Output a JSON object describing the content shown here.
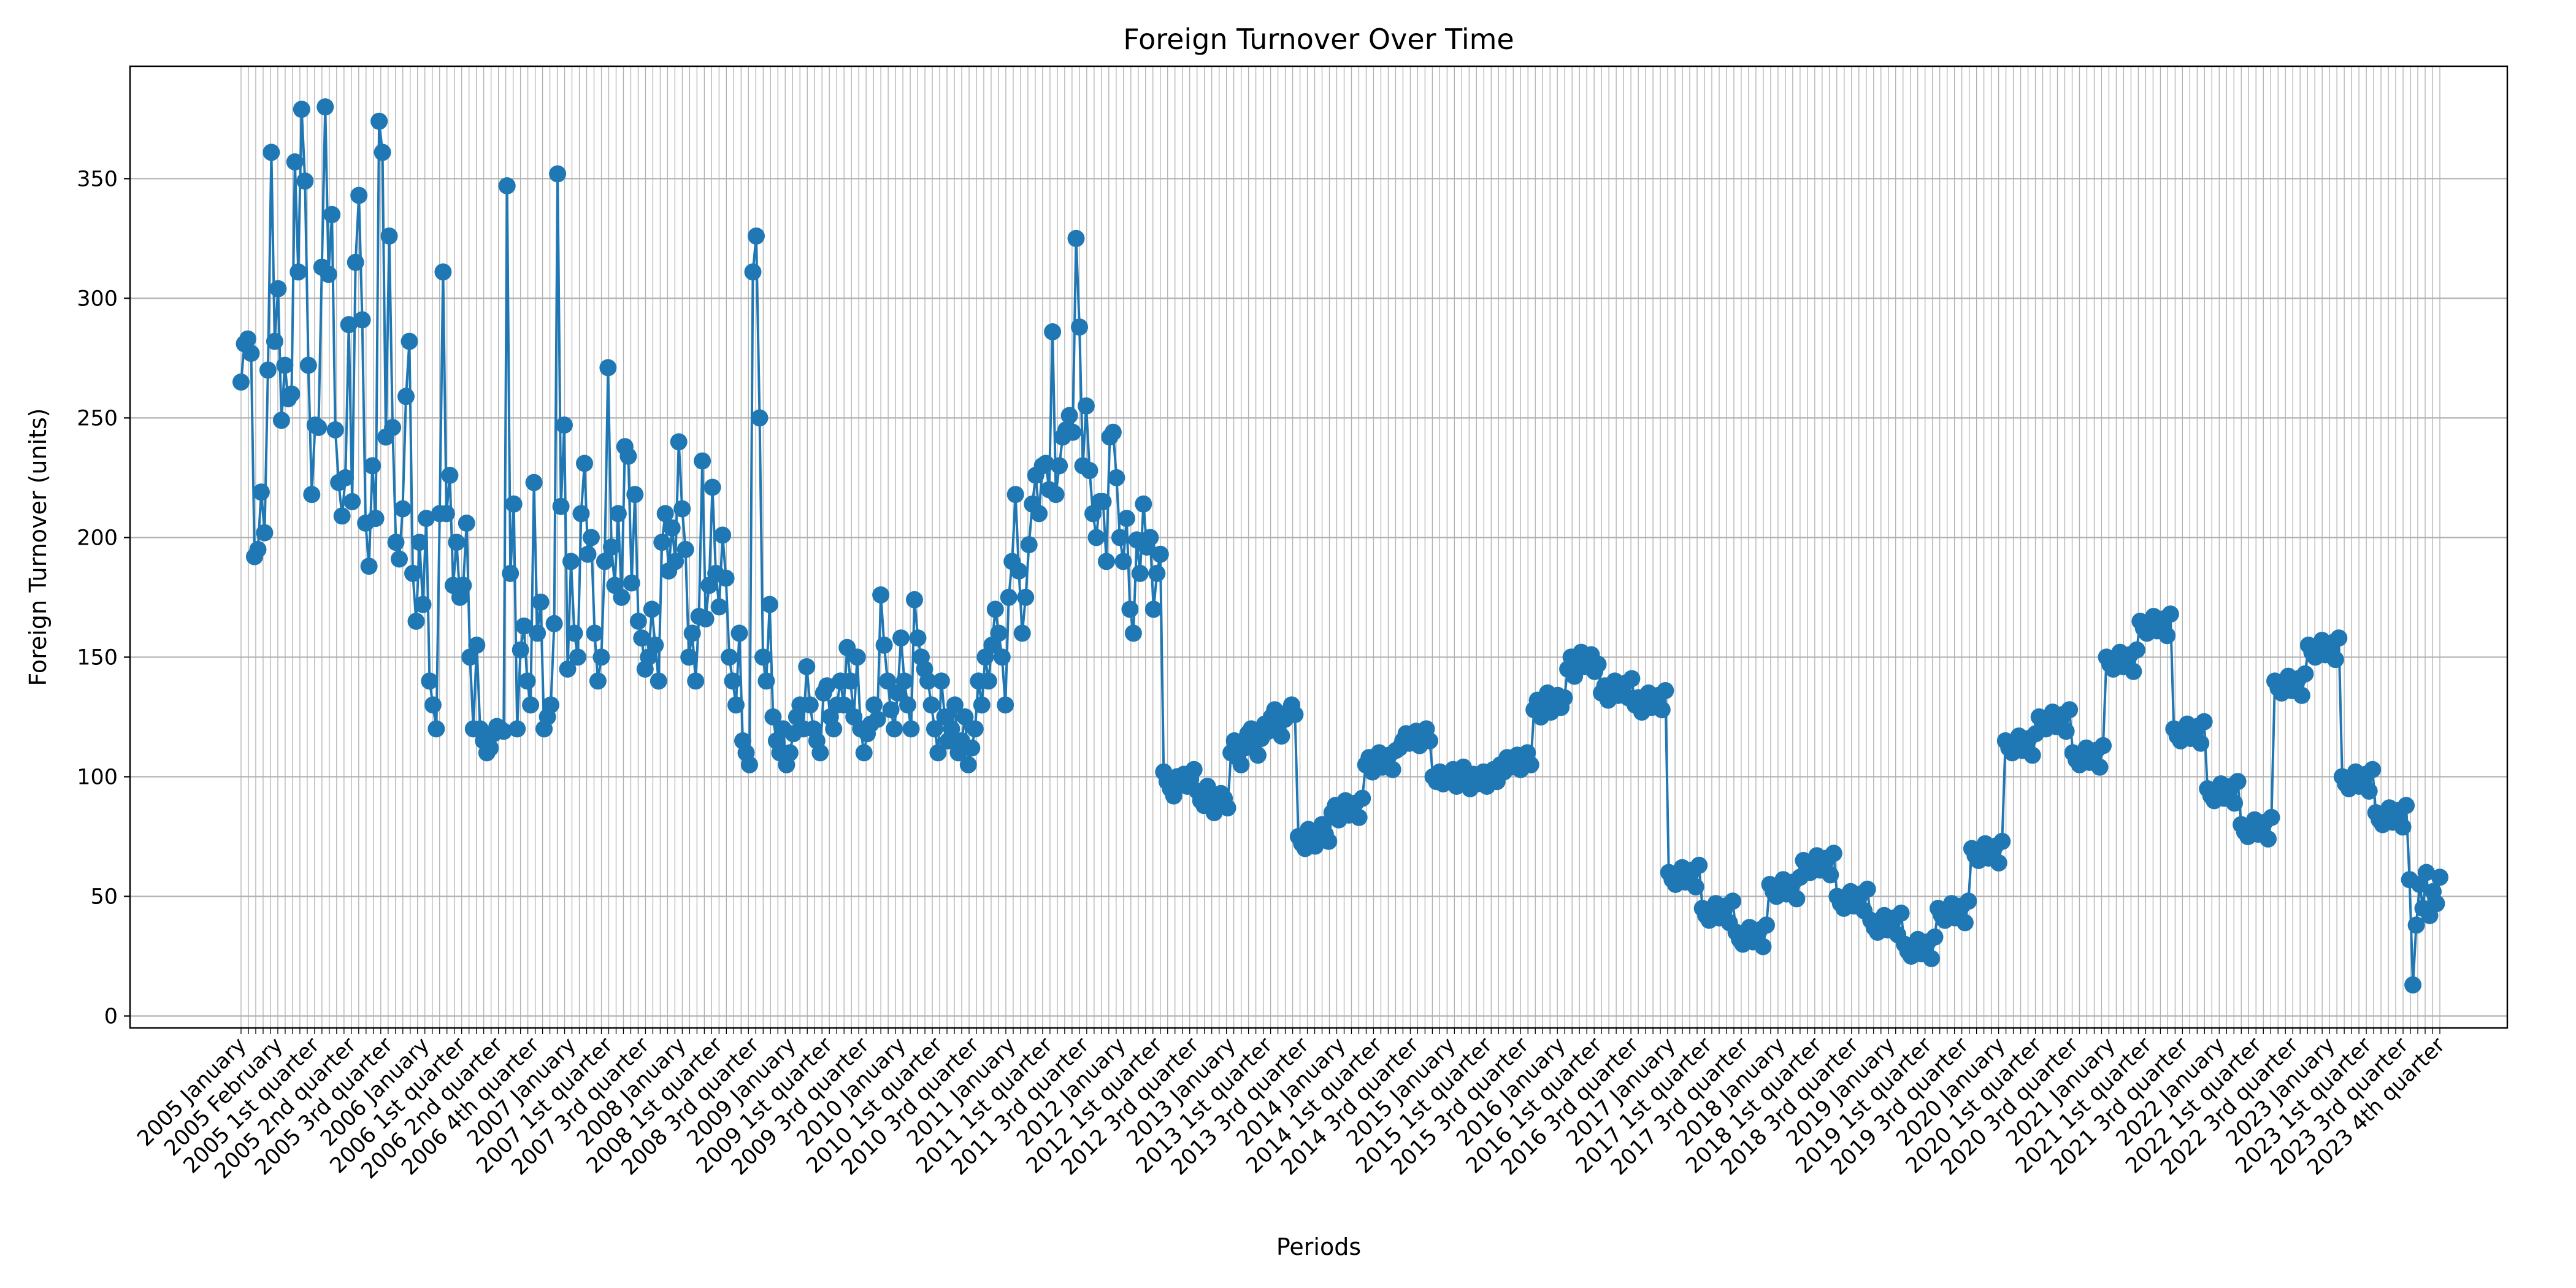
{
  "chart_data": {
    "type": "line",
    "title": "Foreign Turnover Over Time",
    "xlabel": "Periods",
    "ylabel": "Foreign Turnover (units)",
    "ylim": [
      -5,
      397
    ],
    "yticks": [
      0,
      50,
      100,
      150,
      200,
      250,
      300,
      350
    ],
    "grid": true,
    "marker": "circle",
    "colors": {
      "series": "#1f77b4",
      "grid": "#b0b0b0",
      "axes": "#000000",
      "background": "#ffffff"
    },
    "x_tick_labels": [
      "2005 January",
      "2005 February",
      "2005 1st quarter",
      "2005 2nd quarter",
      "2005 3rd quarter",
      "2006 January",
      "2006 1st quarter",
      "2006 2nd quarter",
      "2006 4th quarter",
      "2007 January",
      "2007 1st quarter",
      "2007 3rd quarter",
      "2008 January",
      "2008 1st quarter",
      "2008 3rd quarter",
      "2009 January",
      "2009 1st quarter",
      "2009 3rd quarter",
      "2010 January",
      "2010 1st quarter",
      "2010 3rd quarter",
      "2011 January",
      "2011 1st quarter",
      "2011 3rd quarter",
      "2012 January",
      "2012 1st quarter",
      "2012 3rd quarter",
      "2013 January",
      "2013 1st quarter",
      "2013 3rd quarter",
      "2014 January",
      "2014 1st quarter",
      "2014 3rd quarter",
      "2015 January",
      "2015 1st quarter",
      "2015 3rd quarter",
      "2016 January",
      "2016 1st quarter",
      "2016 3rd quarter",
      "2017 January",
      "2017 1st quarter",
      "2017 3rd quarter",
      "2018 January",
      "2018 1st quarter",
      "2018 3rd quarter",
      "2019 January",
      "2019 1st quarter",
      "2019 3rd quarter",
      "2020 January",
      "2020 1st quarter",
      "2020 3rd quarter",
      "2021 January",
      "2021 1st quarter",
      "2021 3rd quarter",
      "2022 January",
      "2022 1st quarter",
      "2022 3rd quarter",
      "2023 January",
      "2023 1st quarter",
      "2023 3rd quarter",
      "2023 4th quarter"
    ],
    "series": [
      {
        "values": [
          265,
          281,
          283,
          277,
          192,
          195,
          219,
          202,
          270,
          361,
          282,
          304,
          249,
          272,
          258,
          260,
          357,
          311,
          379,
          349,
          272,
          218,
          247,
          246,
          313,
          380,
          310,
          335,
          245,
          223,
          209,
          225,
          289,
          215,
          315,
          343,
          291,
          206,
          188,
          230,
          208,
          374,
          361,
          242,
          326,
          246,
          198,
          191,
          212,
          259,
          282,
          185,
          165,
          198,
          172,
          208,
          140,
          130,
          120,
          210,
          311,
          210,
          226,
          180,
          198,
          175,
          180,
          206,
          150,
          120,
          155,
          120,
          115,
          110,
          112,
          118,
          121,
          120,
          119,
          347,
          185,
          214,
          120,
          153,
          163,
          140,
          130,
          223,
          160,
          173,
          120,
          125,
          130,
          164,
          352,
          213,
          247,
          145,
          190,
          160,
          150,
          210,
          231,
          193,
          200,
          160,
          140,
          150,
          190,
          271,
          196,
          180,
          210,
          175,
          238,
          234,
          181,
          218,
          165,
          158,
          145,
          150,
          170,
          155,
          140,
          198,
          210,
          186,
          204,
          190,
          240,
          212,
          195,
          150,
          160,
          140,
          167,
          232,
          166,
          180,
          221,
          185,
          171,
          201,
          183,
          150,
          140,
          130,
          160,
          115,
          110,
          105,
          311,
          326,
          250,
          150,
          140,
          172,
          125,
          115,
          110,
          120,
          105,
          110,
          118,
          125,
          130,
          120,
          146,
          130,
          120,
          115,
          110,
          135,
          138,
          125,
          120,
          130,
          140,
          130,
          154,
          140,
          125,
          150,
          120,
          110,
          118,
          122,
          130,
          124,
          176,
          155,
          140,
          128,
          120,
          135,
          158,
          140,
          130,
          120,
          174,
          158,
          150,
          145,
          140,
          130,
          120,
          110,
          140,
          125,
          115,
          120,
          130,
          110,
          115,
          125,
          105,
          112,
          120,
          140,
          130,
          150,
          140,
          155,
          170,
          160,
          150,
          130,
          175,
          190,
          218,
          186,
          160,
          175,
          197,
          214,
          226,
          210,
          230,
          231,
          220,
          286,
          218,
          230,
          242,
          245,
          251,
          244,
          325,
          288,
          230,
          255,
          228,
          210,
          200,
          215,
          215,
          190,
          242,
          244,
          225,
          200,
          190,
          208,
          170,
          160,
          199,
          185,
          214,
          196,
          200,
          170,
          185,
          193,
          102,
          98,
          95,
          92,
          100,
          97,
          101,
          96,
          99,
          103,
          94,
          90,
          88,
          96,
          92,
          85,
          89,
          93,
          91,
          87,
          110,
          115,
          108,
          105,
          112,
          118,
          120,
          114,
          109,
          116,
          122,
          119,
          125,
          128,
          121,
          117,
          124,
          127,
          130,
          126,
          75,
          72,
          70,
          78,
          74,
          71,
          77,
          80,
          76,
          73,
          85,
          88,
          82,
          86,
          90,
          84,
          87,
          89,
          83,
          91,
          105,
          108,
          102,
          106,
          110,
          104,
          107,
          109,
          103,
          111,
          112,
          115,
          118,
          114,
          116,
          119,
          113,
          117,
          120,
          115,
          100,
          98,
          102,
          97,
          101,
          99,
          103,
          96,
          100,
          104,
          98,
          95,
          101,
          97,
          99,
          102,
          96,
          100,
          103,
          98,
          105,
          102,
          108,
          104,
          106,
          109,
          103,
          107,
          110,
          105,
          128,
          132,
          125,
          130,
          135,
          127,
          131,
          134,
          129,
          133,
          145,
          150,
          142,
          148,
          152,
          146,
          149,
          151,
          144,
          147,
          135,
          138,
          132,
          136,
          140,
          134,
          137,
          139,
          133,
          141,
          130,
          133,
          127,
          131,
          135,
          129,
          132,
          134,
          128,
          136,
          60,
          57,
          55,
          58,
          62,
          56,
          59,
          61,
          54,
          63,
          45,
          42,
          40,
          44,
          47,
          41,
          43,
          46,
          39,
          48,
          35,
          32,
          30,
          34,
          37,
          31,
          33,
          36,
          29,
          38,
          55,
          52,
          50,
          54,
          57,
          51,
          53,
          56,
          49,
          58,
          65,
          62,
          60,
          64,
          67,
          61,
          63,
          66,
          59,
          68,
          50,
          47,
          45,
          49,
          52,
          46,
          48,
          51,
          44,
          53,
          40,
          37,
          35,
          39,
          42,
          36,
          38,
          41,
          34,
          43,
          30,
          27,
          25,
          29,
          32,
          26,
          28,
          31,
          24,
          33,
          45,
          42,
          40,
          44,
          47,
          41,
          43,
          46,
          39,
          48,
          70,
          67,
          65,
          69,
          72,
          66,
          68,
          71,
          64,
          73,
          115,
          112,
          110,
          114,
          117,
          111,
          113,
          116,
          109,
          118,
          125,
          122,
          120,
          124,
          127,
          121,
          123,
          126,
          119,
          128,
          110,
          107,
          105,
          109,
          112,
          106,
          108,
          111,
          104,
          113,
          150,
          147,
          145,
          149,
          152,
          146,
          148,
          151,
          144,
          153,
          165,
          162,
          160,
          164,
          167,
          161,
          163,
          166,
          159,
          168,
          120,
          117,
          115,
          119,
          122,
          116,
          118,
          121,
          114,
          123,
          95,
          92,
          90,
          94,
          97,
          91,
          93,
          96,
          89,
          98,
          80,
          77,
          75,
          79,
          82,
          76,
          78,
          81,
          74,
          83,
          140,
          137,
          135,
          139,
          142,
          136,
          138,
          141,
          134,
          143,
          155,
          152,
          150,
          154,
          157,
          151,
          153,
          156,
          149,
          158,
          100,
          97,
          95,
          99,
          102,
          96,
          98,
          101,
          94,
          103,
          85,
          82,
          80,
          84,
          87,
          81,
          83,
          86,
          79,
          88,
          57,
          13,
          38,
          55,
          45,
          60,
          42,
          52,
          47,
          58
        ]
      }
    ]
  }
}
